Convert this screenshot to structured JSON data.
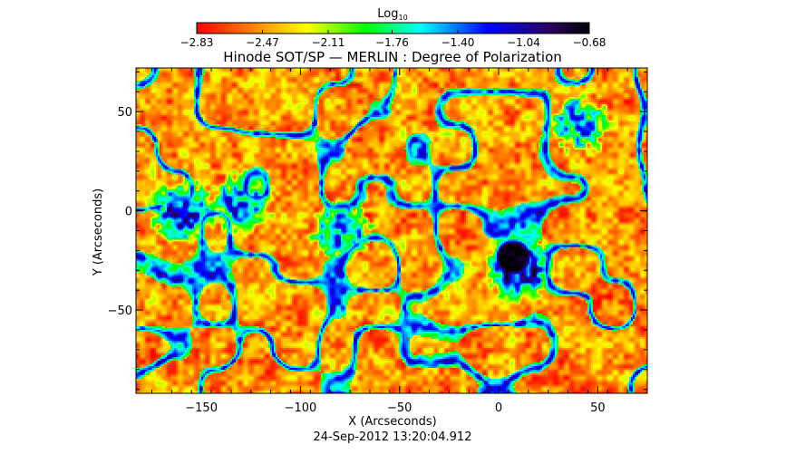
{
  "chart_data": {
    "type": "heatmap",
    "title": "Hinode SOT/SP — MERLIN : Degree of Polarization",
    "xlabel": "X (Arcseconds)",
    "ylabel": "Y (Arcseconds)",
    "xlim": [
      -183,
      75
    ],
    "ylim": [
      -92,
      72
    ],
    "x_ticks": [
      -150,
      -100,
      -50,
      0,
      50
    ],
    "y_ticks": [
      50,
      0,
      -50
    ],
    "grid": false,
    "timestamp": "24-Sep-2012 13:20:04.912",
    "colorbar": {
      "label_base": "Log",
      "label_sub": "10",
      "range": [
        -2.83,
        -0.68
      ],
      "ticks": [
        -2.83,
        -2.47,
        -2.11,
        -1.76,
        -1.4,
        -1.04,
        -0.68
      ],
      "tick_labels": [
        "−2.83",
        "−2.47",
        "−2.11",
        "−1.76",
        "−1.40",
        "−1.04",
        "−0.68"
      ],
      "colormap": [
        "#ff0000",
        "#ff8000",
        "#ffff00",
        "#00ff00",
        "#00ffff",
        "#0000ff",
        "#1a0033",
        "#000000"
      ]
    },
    "features": [
      {
        "type": "sunspot",
        "x": 7,
        "y": -23,
        "value": -0.72
      },
      {
        "type": "penumbra",
        "x": 10,
        "y": -28,
        "value": -1.1
      },
      {
        "type": "plage",
        "x": -160,
        "y": 0,
        "value": -1.3
      },
      {
        "type": "plage",
        "x": -80,
        "y": -10,
        "value": -1.5
      },
      {
        "type": "plage",
        "x": -130,
        "y": 5,
        "value": -1.5
      },
      {
        "type": "network",
        "x": 40,
        "y": 45,
        "value": -1.6
      }
    ]
  }
}
